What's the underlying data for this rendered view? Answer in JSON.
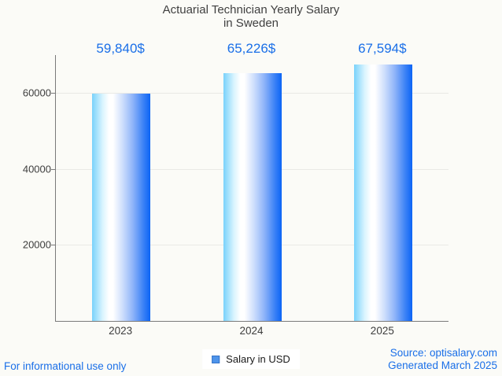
{
  "title": {
    "line1": "Actuarial Technician Yearly Salary",
    "line2": "in Sweden"
  },
  "chart_data": {
    "type": "bar",
    "title": "Actuarial Technician Yearly Salary in Sweden",
    "categories": [
      "2023",
      "2024",
      "2025"
    ],
    "values": [
      59840,
      65226,
      67594
    ],
    "value_labels": [
      "59,840$",
      "65,226$",
      "67,594$"
    ],
    "xlabel": "",
    "ylabel": "",
    "ylim": [
      0,
      70000
    ],
    "yticks": [
      20000,
      40000,
      60000
    ],
    "ytick_labels": [
      "20000",
      "40000",
      "60000"
    ],
    "grid": true,
    "legend_position": "bottom-center",
    "bar_gradient": [
      "#79d2fb",
      "#ffffff",
      "#0b64f5"
    ]
  },
  "legend": {
    "label": "Salary in USD",
    "marker_color": "#4e94ea"
  },
  "footer": {
    "disclaimer": "For informational use only",
    "source": "Source: optisalary.com",
    "generated": "Generated March 2025"
  },
  "colors": {
    "background": "#fbfbf7",
    "title_text": "#404040",
    "value_text": "#1a6fe8",
    "axis": "#7a7a7a",
    "gridline": "#e9e9e5",
    "tick_text": "#3d3d3d",
    "footer_text": "#1a6fe8"
  }
}
